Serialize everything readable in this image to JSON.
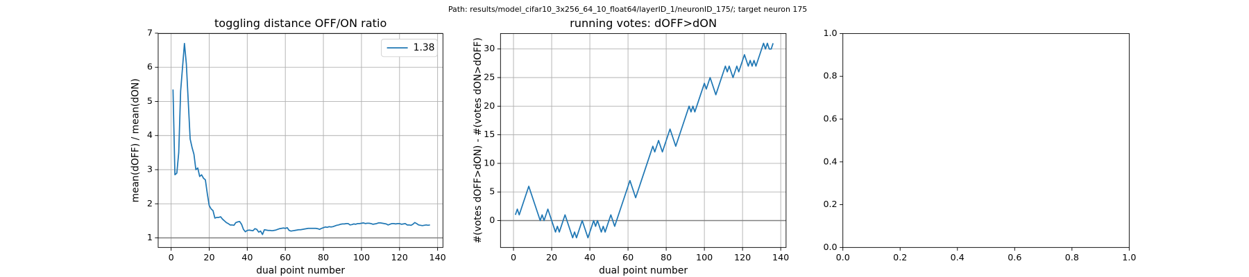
{
  "title": "Path: results/model_cifar10_3x256_64_10_float64/layerID_1/neuronID_175/; target neuron 175",
  "chart_data": [
    {
      "type": "line",
      "title": "toggling distance OFF/ON ratio",
      "xlabel": "dual point number",
      "ylabel": "mean(dOFF) / mean(dON)",
      "xlim": [
        -6.8,
        142.8
      ],
      "ylim": [
        0.72,
        6.99
      ],
      "xticks": [
        0,
        20,
        40,
        60,
        80,
        100,
        120,
        140
      ],
      "yticks": [
        1,
        2,
        3,
        4,
        5,
        6,
        7
      ],
      "grid": true,
      "legend": "upper right",
      "hline": 1,
      "hline_color": "#808080",
      "x": [
        1,
        2,
        3,
        4,
        5,
        6,
        7,
        8,
        9,
        10,
        11,
        12,
        13,
        14,
        15,
        16,
        17,
        18,
        19,
        20,
        21,
        22,
        23,
        24,
        25,
        26,
        27,
        28,
        29,
        30,
        31,
        32,
        33,
        34,
        35,
        36,
        37,
        38,
        39,
        40,
        41,
        42,
        43,
        44,
        45,
        46,
        47,
        48,
        49,
        50,
        51,
        52,
        53,
        54,
        55,
        56,
        57,
        58,
        59,
        60,
        61,
        62,
        63,
        64,
        65,
        66,
        67,
        68,
        69,
        70,
        71,
        72,
        73,
        74,
        75,
        76,
        77,
        78,
        79,
        80,
        81,
        82,
        83,
        84,
        85,
        86,
        87,
        88,
        89,
        90,
        91,
        92,
        93,
        94,
        95,
        96,
        97,
        98,
        99,
        100,
        101,
        102,
        103,
        104,
        105,
        106,
        107,
        108,
        109,
        110,
        111,
        112,
        113,
        114,
        115,
        116,
        117,
        118,
        119,
        120,
        121,
        122,
        123,
        124,
        125,
        126,
        127,
        128,
        129,
        130,
        131,
        132,
        133,
        134,
        135,
        136
      ],
      "series": [
        {
          "name": "1.38",
          "color": "#1f77b4",
          "values": [
            5.35,
            2.85,
            2.9,
            3.5,
            5.3,
            6.0,
            6.7,
            6.1,
            5.0,
            3.9,
            3.65,
            3.45,
            3.0,
            3.05,
            2.8,
            2.85,
            2.75,
            2.7,
            2.3,
            1.95,
            1.85,
            1.8,
            1.58,
            1.6,
            1.6,
            1.62,
            1.55,
            1.5,
            1.45,
            1.42,
            1.38,
            1.38,
            1.37,
            1.45,
            1.47,
            1.48,
            1.4,
            1.25,
            1.18,
            1.22,
            1.23,
            1.22,
            1.21,
            1.27,
            1.25,
            1.17,
            1.2,
            1.1,
            1.24,
            1.23,
            1.22,
            1.22,
            1.21,
            1.22,
            1.23,
            1.25,
            1.27,
            1.28,
            1.29,
            1.28,
            1.3,
            1.22,
            1.2,
            1.21,
            1.22,
            1.23,
            1.24,
            1.24,
            1.25,
            1.26,
            1.27,
            1.28,
            1.28,
            1.28,
            1.28,
            1.28,
            1.27,
            1.25,
            1.28,
            1.3,
            1.32,
            1.31,
            1.33,
            1.32,
            1.33,
            1.35,
            1.37,
            1.38,
            1.4,
            1.41,
            1.41,
            1.42,
            1.42,
            1.38,
            1.39,
            1.41,
            1.4,
            1.42,
            1.42,
            1.43,
            1.44,
            1.42,
            1.43,
            1.43,
            1.42,
            1.4,
            1.41,
            1.42,
            1.44,
            1.44,
            1.43,
            1.42,
            1.41,
            1.38,
            1.4,
            1.42,
            1.42,
            1.41,
            1.42,
            1.42,
            1.4,
            1.41,
            1.42,
            1.38,
            1.38,
            1.37,
            1.4,
            1.45,
            1.42,
            1.38,
            1.37,
            1.36,
            1.37,
            1.38,
            1.37,
            1.38
          ]
        }
      ]
    },
    {
      "type": "line",
      "title": "running votes: dOFF>dON",
      "xlabel": "dual point number",
      "ylabel": "#(votes dOFF>dON) - #(votes dON>dOFF)",
      "xlim": [
        -6.8,
        142.8
      ],
      "ylim": [
        -4.7,
        32.7
      ],
      "xticks": [
        0,
        20,
        40,
        60,
        80,
        100,
        120,
        140
      ],
      "yticks": [
        0,
        5,
        10,
        15,
        20,
        25,
        30
      ],
      "grid": true,
      "hline": 0,
      "hline_color": "#808080",
      "x": [
        1,
        2,
        3,
        4,
        5,
        6,
        7,
        8,
        9,
        10,
        11,
        12,
        13,
        14,
        15,
        16,
        17,
        18,
        19,
        20,
        21,
        22,
        23,
        24,
        25,
        26,
        27,
        28,
        29,
        30,
        31,
        32,
        33,
        34,
        35,
        36,
        37,
        38,
        39,
        40,
        41,
        42,
        43,
        44,
        45,
        46,
        47,
        48,
        49,
        50,
        51,
        52,
        53,
        54,
        55,
        56,
        57,
        58,
        59,
        60,
        61,
        62,
        63,
        64,
        65,
        66,
        67,
        68,
        69,
        70,
        71,
        72,
        73,
        74,
        75,
        76,
        77,
        78,
        79,
        80,
        81,
        82,
        83,
        84,
        85,
        86,
        87,
        88,
        89,
        90,
        91,
        92,
        93,
        94,
        95,
        96,
        97,
        98,
        99,
        100,
        101,
        102,
        103,
        104,
        105,
        106,
        107,
        108,
        109,
        110,
        111,
        112,
        113,
        114,
        115,
        116,
        117,
        118,
        119,
        120,
        121,
        122,
        123,
        124,
        125,
        126,
        127,
        128,
        129,
        130,
        131,
        132,
        133,
        134,
        135,
        136
      ],
      "series": [
        {
          "color": "#1f77b4",
          "values": [
            1,
            2,
            1,
            2,
            3,
            4,
            5,
            6,
            5,
            4,
            3,
            2,
            1,
            0,
            1,
            0,
            1,
            2,
            1,
            0,
            -1,
            -2,
            -1,
            -2,
            -1,
            0,
            1,
            0,
            -1,
            -2,
            -3,
            -2,
            -3,
            -2,
            -1,
            0,
            -1,
            -2,
            -3,
            -2,
            -1,
            0,
            -1,
            0,
            -1,
            -2,
            -1,
            -2,
            -1,
            0,
            1,
            0,
            -1,
            0,
            1,
            2,
            3,
            4,
            5,
            6,
            7,
            6,
            5,
            4,
            5,
            6,
            7,
            8,
            9,
            10,
            11,
            12,
            13,
            12,
            13,
            14,
            13,
            12,
            13,
            14,
            15,
            16,
            15,
            14,
            13,
            14,
            15,
            16,
            17,
            18,
            19,
            20,
            19,
            20,
            19,
            20,
            21,
            22,
            23,
            24,
            23,
            24,
            25,
            24,
            23,
            22,
            23,
            24,
            25,
            26,
            27,
            26,
            27,
            26,
            25,
            26,
            27,
            26,
            27,
            28,
            29,
            28,
            27,
            28,
            27,
            28,
            27,
            28,
            29,
            30,
            31,
            30,
            31,
            30,
            30,
            31
          ]
        }
      ]
    },
    {
      "type": "line",
      "xlim": [
        0,
        1
      ],
      "ylim": [
        0,
        1
      ],
      "xticks": [
        {
          "value": 0,
          "label": "0.0"
        },
        {
          "value": 0.2,
          "label": "0.2"
        },
        {
          "value": 0.4,
          "label": "0.4"
        },
        {
          "value": 0.6,
          "label": "0.6"
        },
        {
          "value": 0.8,
          "label": "0.8"
        },
        {
          "value": 1,
          "label": "1.0"
        }
      ],
      "yticks": [
        {
          "value": 0,
          "label": "0.0"
        },
        {
          "value": 0.2,
          "label": "0.2"
        },
        {
          "value": 0.4,
          "label": "0.4"
        },
        {
          "value": 0.6,
          "label": "0.6"
        },
        {
          "value": 0.8,
          "label": "0.8"
        },
        {
          "value": 1,
          "label": "1.0"
        }
      ],
      "grid": false
    }
  ]
}
